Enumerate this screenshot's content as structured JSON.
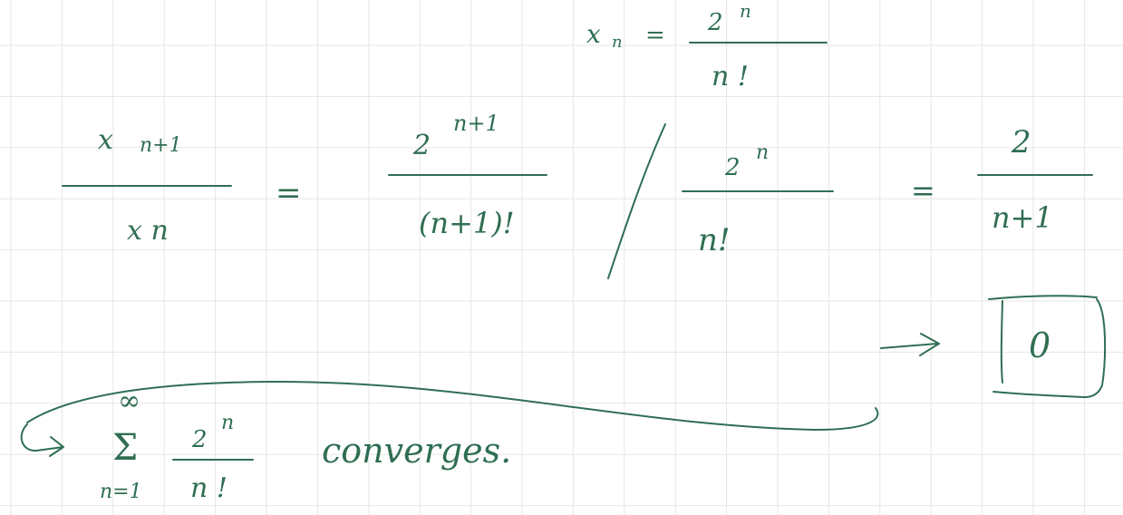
{
  "note": {
    "definition": {
      "lhs": "x",
      "lhs_sub": "n",
      "equals": "=",
      "numerator": "2",
      "numerator_sup": "n",
      "denominator": "n !"
    },
    "ratio": {
      "left_num": "x",
      "left_num_sub": "n+1",
      "left_den": "x n",
      "equals_1": "=",
      "frac1_num": "2",
      "frac1_num_sup": "n+1",
      "frac1_den": "(n+1)!",
      "frac2_num": "2",
      "frac2_num_sup": "n",
      "frac2_den": "n!",
      "equals_2": "=",
      "result_num": "2",
      "result_den": "n+1"
    },
    "limit": {
      "boxed_value": "0"
    },
    "conclusion": {
      "sum_upper": "∞",
      "sum_symbol": "Σ",
      "sum_lower": "n=1",
      "term_num": "2",
      "term_num_sup": "n",
      "term_den": "n !",
      "word": "converges."
    },
    "colors": {
      "ink": "#2f6e52",
      "grid": "#e6e6e6",
      "background": "#ffffff"
    }
  }
}
